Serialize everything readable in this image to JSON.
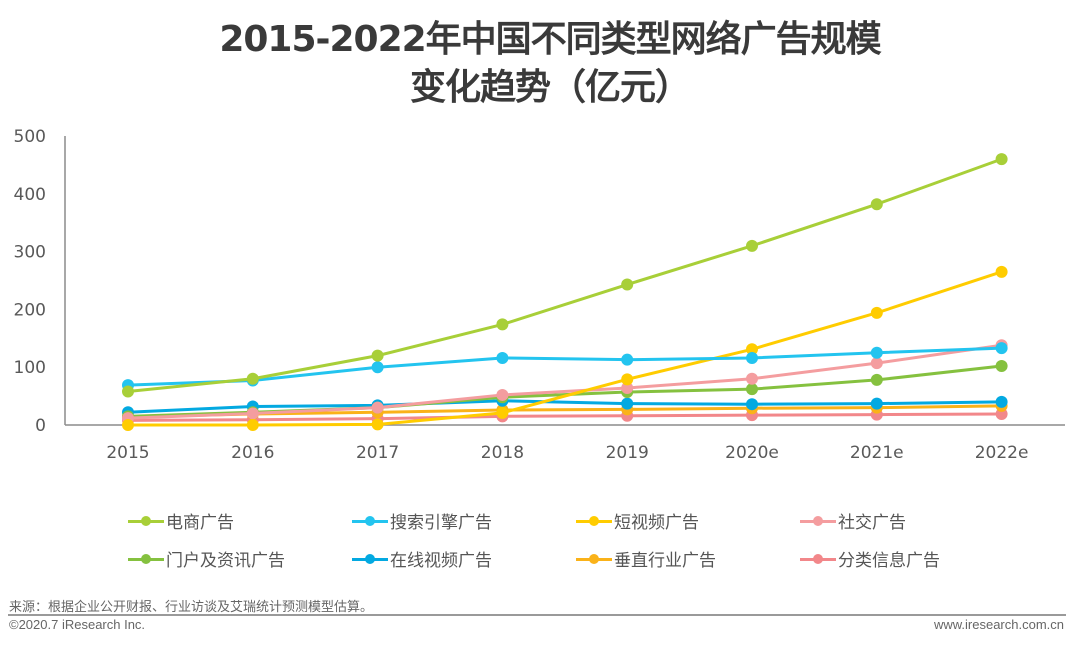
{
  "chart_data": {
    "type": "line",
    "title": "2015-2022年中国不同类型网络广告规模变化趋势（亿元）",
    "title_lines": [
      "2015-2022年中国不同类型网络广告规模",
      "变化趋势（亿元）"
    ],
    "xlabel": "",
    "ylabel": "",
    "categories": [
      "2015",
      "2016",
      "2017",
      "2018",
      "2019",
      "2020e",
      "2021e",
      "2022e"
    ],
    "ylim": [
      0,
      500
    ],
    "yticks": [
      0,
      100,
      200,
      300,
      400,
      500
    ],
    "grid": false,
    "legend_position": "bottom",
    "series": [
      {
        "name": "电商广告",
        "color": "#a8cf38",
        "values": [
          58,
          80,
          120,
          174,
          243,
          310,
          382,
          460
        ]
      },
      {
        "name": "搜索引擎广告",
        "color": "#23c4ef",
        "values": [
          69,
          77,
          100,
          116,
          113,
          116,
          125,
          133
        ]
      },
      {
        "name": "短视频广告",
        "color": "#ffcc00",
        "values": [
          0,
          0,
          1,
          21,
          79,
          131,
          194,
          265
        ]
      },
      {
        "name": "社交广告",
        "color": "#f49d9f",
        "values": [
          12,
          20,
          30,
          52,
          64,
          80,
          107,
          138
        ]
      },
      {
        "name": "门户及资讯广告",
        "color": "#85c13f",
        "values": [
          15,
          22,
          30,
          48,
          57,
          62,
          78,
          102
        ]
      },
      {
        "name": "在线视频广告",
        "color": "#03a9e1",
        "values": [
          22,
          32,
          34,
          42,
          37,
          36,
          37,
          40
        ]
      },
      {
        "name": "垂直行业广告",
        "color": "#fab219",
        "values": [
          14,
          19,
          22,
          26,
          27,
          29,
          30,
          33
        ]
      },
      {
        "name": "分类信息广告",
        "color": "#f2878a",
        "values": [
          8,
          9,
          11,
          15,
          16,
          17,
          18,
          19
        ]
      }
    ]
  },
  "footer": {
    "source": "来源：根据企业公开财报、行业访谈及艾瑞统计预测模型估算。",
    "copyright": "©2020.7 iResearch Inc.",
    "website": "www.iresearch.com.cn"
  }
}
